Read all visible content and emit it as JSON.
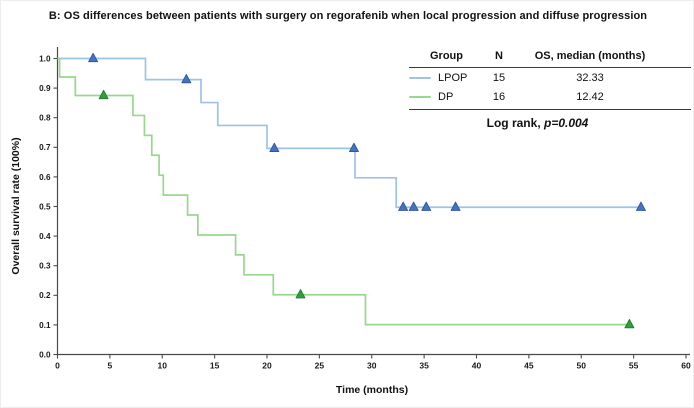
{
  "title": "B: OS differences between patients with surgery on regorafenib when local progression and diffuse progression",
  "chart_data": {
    "type": "line",
    "subtype": "kaplan-meier-step",
    "title": "B: OS differences between patients with surgery on regorafenib when local progression and diffuse progression",
    "xlabel": "Time (months)",
    "ylabel": "Overall survival rate (100%)",
    "xlim": [
      0,
      60
    ],
    "ylim": [
      0.0,
      1.0
    ],
    "xticks": [
      0,
      5,
      10,
      15,
      20,
      25,
      30,
      35,
      40,
      45,
      50,
      55,
      60
    ],
    "yticks": [
      0.0,
      0.1,
      0.2,
      0.3,
      0.4,
      0.5,
      0.6,
      0.7,
      0.8,
      0.9,
      1.0
    ],
    "grid": false,
    "axis_color": "#4a4a4a",
    "tick_label_color": "#1a1a1a",
    "series": [
      {
        "name": "LPOP",
        "n": 15,
        "median_os_months": 32.33,
        "line_color": "#9DC3E6",
        "marker_fill": "#4472C4",
        "marker_edge": "#2F5597",
        "steps": [
          [
            0,
            1.0
          ],
          [
            8.4,
            0.9286
          ],
          [
            13.7,
            0.8512
          ],
          [
            15.3,
            0.7738
          ],
          [
            20.0,
            0.6964
          ],
          [
            28.4,
            0.5969
          ],
          [
            32.33,
            0.4974
          ]
        ],
        "end_time": 55.7,
        "censor_marks": [
          [
            3.4,
            1.0
          ],
          [
            12.3,
            0.9286
          ],
          [
            20.7,
            0.6964
          ],
          [
            28.3,
            0.6964
          ],
          [
            33.0,
            0.4974
          ],
          [
            34.0,
            0.4974
          ],
          [
            35.2,
            0.4974
          ],
          [
            38.0,
            0.4974
          ],
          [
            55.7,
            0.4974
          ]
        ]
      },
      {
        "name": "DP",
        "n": 16,
        "median_os_months": 12.42,
        "line_color": "#97D88C",
        "marker_fill": "#2FA03B",
        "marker_edge": "#217A2B",
        "steps": [
          [
            0,
            1.0
          ],
          [
            0.2,
            0.9375
          ],
          [
            1.7,
            0.875
          ],
          [
            7.2,
            0.8077
          ],
          [
            8.3,
            0.7404
          ],
          [
            9.0,
            0.6731
          ],
          [
            9.7,
            0.6058
          ],
          [
            10.1,
            0.5385
          ],
          [
            12.42,
            0.4712
          ],
          [
            13.4,
            0.4038
          ],
          [
            17.0,
            0.3365
          ],
          [
            17.8,
            0.2692
          ],
          [
            20.6,
            0.2019
          ],
          [
            29.4,
            0.101
          ]
        ],
        "end_time": 54.6,
        "censor_marks": [
          [
            4.4,
            0.875
          ],
          [
            23.2,
            0.2019
          ],
          [
            54.6,
            0.101
          ]
        ]
      }
    ],
    "legend_position": "top-right"
  },
  "table": {
    "headers": [
      "Group",
      "N",
      "OS, median (months)"
    ],
    "rows": [
      {
        "group": "LPOP",
        "n": "15",
        "median": "32.33"
      },
      {
        "group": "DP",
        "n": "16",
        "median": "12.42"
      }
    ],
    "footer_prefix": "Log rank, ",
    "footer_stat": "p=0.004"
  }
}
